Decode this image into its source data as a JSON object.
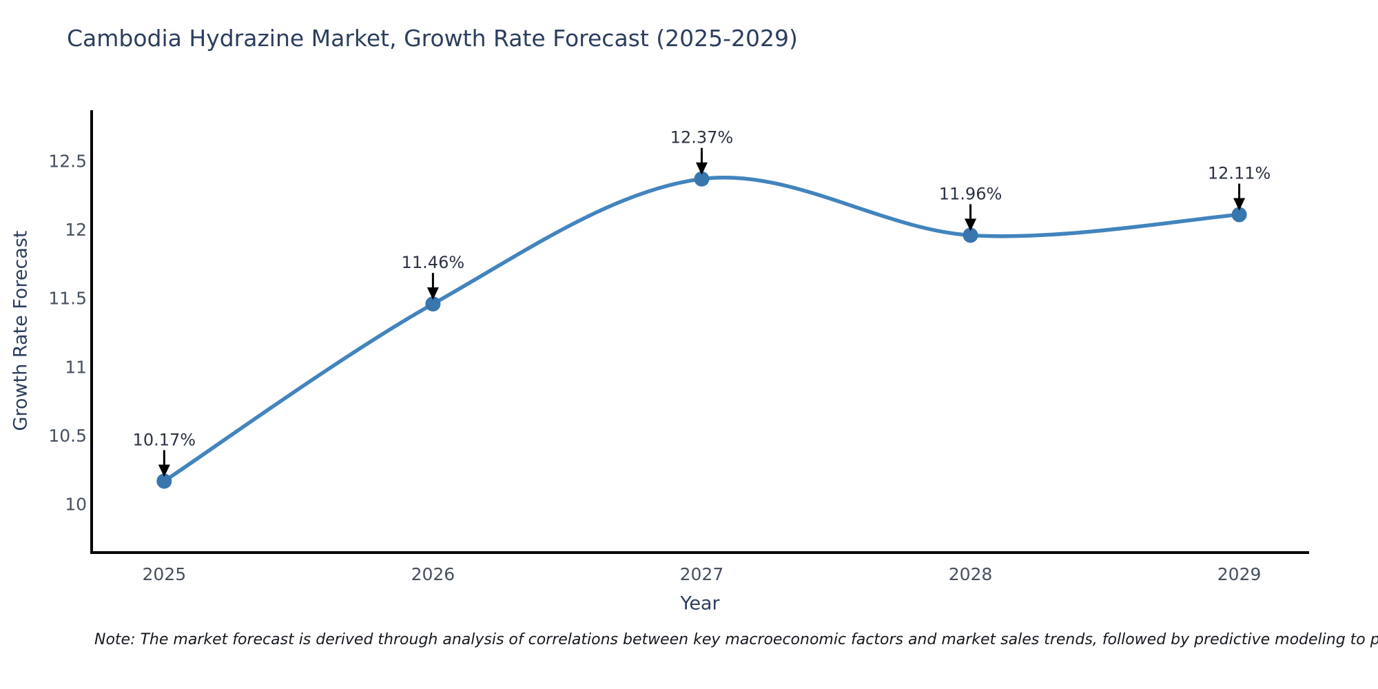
{
  "chart": {
    "title": "Cambodia Hydrazine Market, Growth Rate Forecast (2025-2029)",
    "xlabel": "Year",
    "ylabel": "Growth Rate Forecast",
    "note": "Note: The market forecast is derived through analysis of correlations between key macroeconomic factors and market sales trends, followed by predictive modeling to project future sal"
  },
  "chart_data": {
    "type": "line",
    "title": "Cambodia Hydrazine Market, Growth Rate Forecast (2025-2029)",
    "xlabel": "Year",
    "ylabel": "Growth Rate Forecast",
    "categories": [
      2025,
      2026,
      2027,
      2028,
      2029
    ],
    "x_tick_labels": [
      "2025",
      "2026",
      "2027",
      "2028",
      "2029"
    ],
    "values": [
      10.17,
      11.46,
      12.37,
      11.96,
      12.11
    ],
    "point_labels": [
      "10.17%",
      "11.46%",
      "12.37%",
      "11.96%",
      "12.11%"
    ],
    "y_ticks": [
      10,
      10.5,
      11,
      11.5,
      12,
      12.5
    ],
    "y_tick_labels": [
      "10",
      "10.5",
      "11",
      "11.5",
      "12",
      "12.5"
    ],
    "xlim": [
      2024.73,
      2029.26
    ],
    "ylim": [
      9.65,
      12.87
    ],
    "grid": false,
    "legend": "none",
    "line_shape": "spline",
    "line_color": "#4284bd",
    "marker_color": "#3876ae",
    "spine_color": "#000000",
    "annotation_arrow_color": "#000000",
    "note": "Note: The market forecast is derived through analysis of correlations between key macroeconomic factors and market sales trends, followed by predictive modeling to project future sal"
  }
}
